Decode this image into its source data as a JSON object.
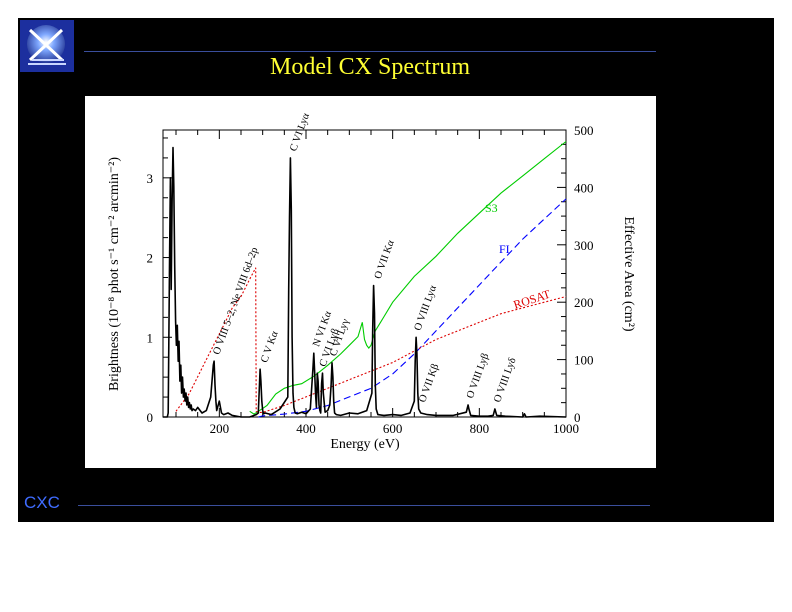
{
  "slide": {
    "title": "Model CX Spectrum",
    "footer": "CXC"
  },
  "colors": {
    "slide_bg": "#000000",
    "title": "#ffff33",
    "footer": "#3f6cff",
    "rule": "#3a4e9c",
    "s3": "#00cc00",
    "fi": "#0000ff",
    "rosat": "#dd0000",
    "spectrum": "#000000"
  },
  "icons": {
    "logo": "chandra-xray-observatory-logo"
  },
  "chart_data": {
    "type": "line",
    "xlabel": "Energy (eV)",
    "ylabel": "Brightness (10⁻⁸ phot s⁻¹ cm⁻² arcmin⁻²)",
    "y2label": "Effective Area (cm²)",
    "xlim": [
      70,
      1000
    ],
    "ylim": [
      0,
      3.6
    ],
    "y2lim": [
      0,
      500
    ],
    "xticks": [
      "200",
      "400",
      "600",
      "800",
      "1000"
    ],
    "xtick_values": [
      200,
      400,
      600,
      800,
      1000
    ],
    "yticks": [
      "0",
      "1",
      "2",
      "3"
    ],
    "ytick_values": [
      0,
      1,
      2,
      3
    ],
    "y2ticks": [
      "0",
      "100",
      "200",
      "300",
      "400",
      "500"
    ],
    "y2tick_values": [
      0,
      100,
      200,
      300,
      400,
      500
    ],
    "grid": false,
    "spectrum": {
      "x": [
        70,
        80,
        82,
        85,
        87,
        89,
        91,
        93,
        95,
        97,
        99,
        101,
        103,
        105,
        107,
        109,
        111,
        113,
        115,
        117,
        119,
        121,
        123,
        125,
        127,
        129,
        131,
        133,
        135,
        137,
        140,
        145,
        150,
        160,
        170,
        180,
        186,
        188,
        190,
        192,
        194,
        200,
        205,
        210,
        220,
        230,
        250,
        270,
        285,
        290,
        294,
        296,
        298,
        300,
        302,
        306,
        320,
        340,
        358,
        360,
        362,
        364,
        366,
        368,
        370,
        372,
        375,
        380,
        390,
        400,
        410,
        416,
        418,
        420,
        422,
        424,
        426,
        428,
        430,
        432,
        434,
        436,
        438,
        440,
        444,
        450,
        455,
        458,
        460,
        462,
        464,
        466,
        470,
        480,
        500,
        520,
        540,
        552,
        554,
        556,
        558,
        560,
        562,
        566,
        580,
        600,
        620,
        640,
        650,
        652,
        654,
        656,
        658,
        660,
        665,
        680,
        700,
        740,
        770,
        774,
        776,
        780,
        800,
        820,
        832,
        836,
        840,
        860,
        900,
        904,
        908,
        940,
        1000
      ],
      "y": [
        0,
        0,
        0.05,
        1.9,
        3.0,
        1.6,
        2.7,
        3.38,
        2.9,
        1.9,
        1.2,
        0.9,
        1.15,
        0.7,
        0.95,
        0.45,
        0.65,
        0.3,
        0.5,
        0.25,
        0.35,
        0.2,
        0.3,
        0.15,
        0.25,
        0.12,
        0.18,
        0.1,
        0.15,
        0.08,
        0.1,
        0.08,
        0.12,
        0.05,
        0.08,
        0.25,
        0.65,
        0.7,
        0.4,
        0.2,
        0.08,
        0.2,
        0.05,
        0.03,
        0.05,
        0.02,
        0,
        0,
        0.03,
        0.05,
        0.6,
        0.45,
        0.2,
        0.08,
        0.04,
        0.05,
        0.03,
        0.1,
        0.25,
        1.6,
        2.5,
        3.25,
        2.6,
        1.0,
        0.3,
        0.12,
        0.05,
        0.04,
        0.06,
        0.04,
        0.1,
        0.6,
        0.8,
        0.55,
        0.3,
        0.12,
        0.55,
        0.45,
        0.15,
        0.08,
        0.05,
        0.42,
        0.55,
        0.3,
        0.06,
        0.08,
        0.15,
        0.4,
        0.68,
        0.5,
        0.2,
        0.05,
        0.03,
        0.02,
        0.05,
        0.04,
        0.08,
        0.3,
        1.1,
        1.65,
        1.3,
        0.4,
        0.1,
        0.03,
        0.02,
        0.03,
        0.02,
        0.05,
        0.2,
        0.7,
        1.0,
        0.8,
        0.3,
        0.1,
        0.05,
        0.03,
        0.02,
        0.02,
        0.06,
        0.15,
        0.1,
        0.02,
        0.01,
        0.01,
        0.02,
        0.1,
        0.02,
        0.01,
        0,
        0.04,
        0,
        0.01,
        0
      ]
    },
    "series": [
      {
        "name": "S3",
        "x": [
          270,
          280,
          290,
          300,
          310,
          330,
          350,
          370,
          390,
          420,
          450,
          480,
          500,
          520,
          530,
          535,
          540,
          545,
          550,
          560,
          580,
          600,
          650,
          700,
          750,
          800,
          850,
          900,
          950,
          1000
        ],
        "y": [
          10,
          5,
          10,
          15,
          20,
          40,
          50,
          55,
          58,
          72,
          90,
          110,
          125,
          140,
          165,
          135,
          125,
          120,
          125,
          150,
          175,
          200,
          245,
          280,
          320,
          355,
          390,
          420,
          450,
          480
        ]
      },
      {
        "name": "FI",
        "x": [
          290,
          300,
          350,
          400,
          450,
          500,
          550,
          600,
          650,
          700,
          750,
          800,
          850,
          900,
          950,
          1000
        ],
        "y": [
          0,
          2,
          5,
          10,
          20,
          35,
          50,
          75,
          110,
          150,
          190,
          230,
          270,
          310,
          345,
          380
        ]
      },
      {
        "name": "ROSAT",
        "x": [
          100,
          130,
          150,
          170,
          190,
          210,
          230,
          250,
          270,
          284,
          285,
          290,
          300,
          350,
          400,
          450,
          500,
          550,
          600,
          650,
          700,
          750,
          800,
          850,
          900,
          950,
          1000
        ],
        "y": [
          10,
          40,
          70,
          100,
          130,
          160,
          190,
          210,
          240,
          260,
          10,
          8,
          8,
          20,
          35,
          50,
          65,
          80,
          95,
          115,
          135,
          150,
          165,
          180,
          190,
          200,
          210
        ]
      }
    ],
    "series_labels": [
      "S3",
      "FI",
      "ROSAT"
    ],
    "annotations": [
      {
        "text": "O VIII 5–2, Ne VIII 6d–2p",
        "x": 190
      },
      {
        "text": "C V Kα",
        "x": 300
      },
      {
        "text": "C VI Lyα",
        "x": 367
      },
      {
        "text": "N VI Kα",
        "x": 420
      },
      {
        "text": "C VI Lyβ",
        "x": 435
      },
      {
        "text": "C VI Lyγ",
        "x": 459
      },
      {
        "text": "O VII Kα",
        "x": 562
      },
      {
        "text": "O VIII Lyα",
        "x": 654
      },
      {
        "text": "O VII Kβ",
        "x": 665
      },
      {
        "text": "O VIII Lyβ",
        "x": 775
      },
      {
        "text": "O VIII Lyδ",
        "x": 838
      }
    ]
  }
}
